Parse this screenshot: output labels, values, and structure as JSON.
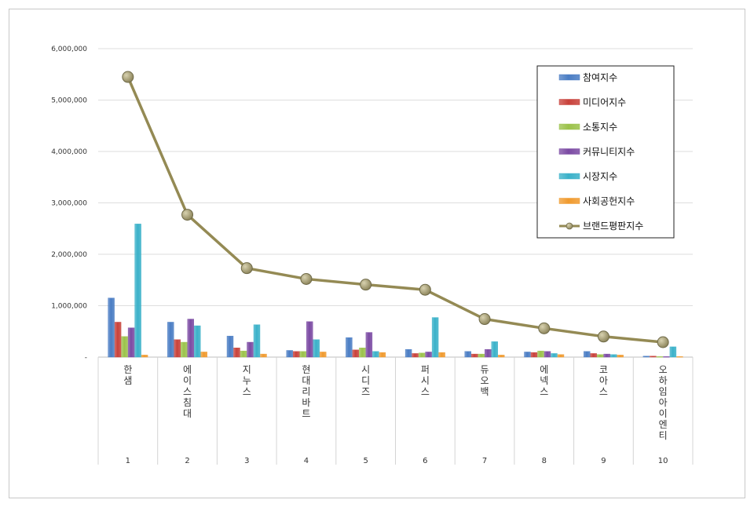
{
  "chart_data": {
    "type": "bar",
    "categories": [
      "1",
      "2",
      "3",
      "4",
      "5",
      "6",
      "7",
      "8",
      "9",
      "10"
    ],
    "category_names": [
      "한샘",
      "에이스침대",
      "지누스",
      "현대리바트",
      "시디즈",
      "퍼시스",
      "듀오백",
      "에넥스",
      "코아스",
      "오하임아이엔티"
    ],
    "y_ticks": [
      "-",
      "1,000,000",
      "2,000,000",
      "3,000,000",
      "4,000,000",
      "5,000,000",
      "6,000,000"
    ],
    "ylim": [
      0,
      6000000
    ],
    "grid": true,
    "legend_position": "top-right",
    "series": [
      {
        "name": "참여지수",
        "type": "bar",
        "color": "#4a7dc4",
        "values": [
          1150000,
          680000,
          410000,
          130000,
          380000,
          150000,
          110000,
          100000,
          110000,
          20000
        ]
      },
      {
        "name": "미디어지수",
        "type": "bar",
        "color": "#c8413a",
        "values": [
          680000,
          340000,
          180000,
          110000,
          140000,
          70000,
          60000,
          90000,
          70000,
          20000
        ]
      },
      {
        "name": "소통지수",
        "type": "bar",
        "color": "#9bc24a",
        "values": [
          400000,
          290000,
          120000,
          110000,
          180000,
          80000,
          60000,
          120000,
          50000,
          10000
        ]
      },
      {
        "name": "커뮤니티지수",
        "type": "bar",
        "color": "#7b4aa3",
        "values": [
          570000,
          740000,
          290000,
          690000,
          480000,
          100000,
          150000,
          110000,
          60000,
          10000
        ]
      },
      {
        "name": "시장지수",
        "type": "bar",
        "color": "#3ab1c9",
        "values": [
          2590000,
          610000,
          630000,
          340000,
          110000,
          770000,
          300000,
          70000,
          50000,
          200000
        ]
      },
      {
        "name": "사회공헌지수",
        "type": "bar",
        "color": "#f09a2e",
        "values": [
          40000,
          100000,
          60000,
          100000,
          90000,
          90000,
          40000,
          50000,
          40000,
          10000
        ]
      },
      {
        "name": "브랜드평판지수",
        "type": "line",
        "color": "#948a54",
        "marker_color": "#9c9470",
        "values": [
          5450000,
          2770000,
          1730000,
          1520000,
          1410000,
          1310000,
          740000,
          560000,
          400000,
          290000
        ]
      }
    ]
  }
}
